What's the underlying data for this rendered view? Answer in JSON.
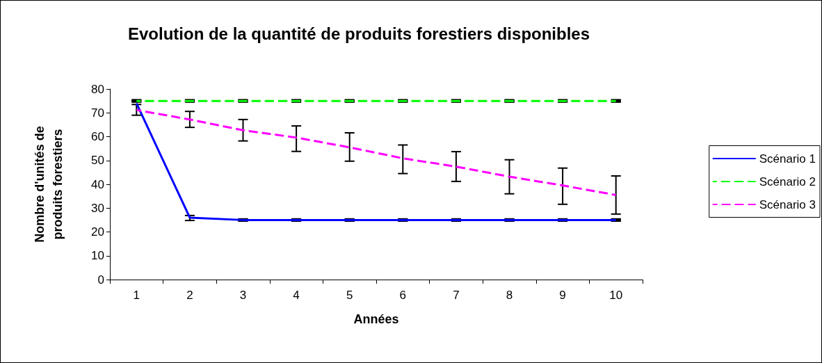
{
  "chart_data": {
    "type": "line",
    "title": "Evolution de la quantité de produits forestiers disponibles",
    "xlabel": "Années",
    "ylabel": "Nombre d'unités de\nproduits forestiers",
    "categories": [
      "1",
      "2",
      "3",
      "4",
      "5",
      "6",
      "7",
      "8",
      "9",
      "10"
    ],
    "series": [
      {
        "name": "Scénario 1",
        "color": "#0000ff",
        "line_style": "solid",
        "values": [
          74,
          26,
          25,
          25,
          25,
          25,
          25,
          25,
          25,
          25
        ],
        "errors": [
          null,
          [
            24.8,
            26.9
          ],
          0,
          0,
          0,
          0,
          0,
          0,
          0,
          0
        ]
      },
      {
        "name": "Scénario 2",
        "color": "#00ff00",
        "line_style": "dashed",
        "values": [
          75,
          75,
          75,
          75,
          75,
          75,
          75,
          75,
          75,
          75
        ],
        "errors": [
          0,
          0,
          0,
          0,
          0,
          0,
          0,
          0,
          0,
          0
        ]
      },
      {
        "name": "Scénario 3",
        "color": "#ff00ff",
        "line_style": "dashed",
        "values": [
          71.2,
          67.2,
          62.7,
          59.6,
          55.5,
          50.9,
          47.4,
          43.2,
          39.5,
          35.5
        ],
        "errors": [
          [
            69,
            73.5
          ],
          [
            63.9,
            70.6
          ],
          [
            58.2,
            67.2
          ],
          [
            53.8,
            64.5
          ],
          [
            49.7,
            61.6
          ],
          [
            44.5,
            56.5
          ],
          [
            41.2,
            53.7
          ],
          [
            36,
            50.3
          ],
          [
            31.6,
            46.8
          ],
          [
            27.5,
            43.5
          ]
        ]
      }
    ],
    "ylim": [
      0,
      80
    ],
    "yticks": [
      0,
      10,
      20,
      30,
      40,
      50,
      60,
      70,
      80
    ],
    "grid": false,
    "legend": "right",
    "marker": "none"
  }
}
